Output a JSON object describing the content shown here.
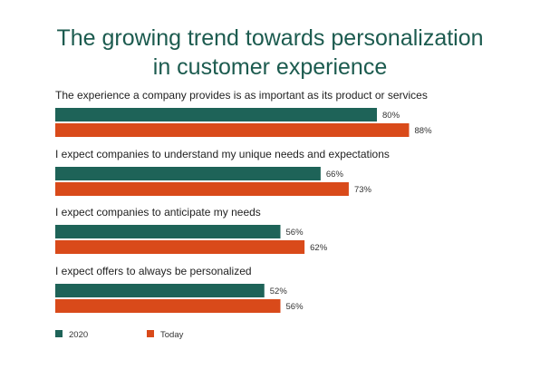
{
  "chart_data": {
    "type": "bar",
    "orientation": "horizontal",
    "title_lines": [
      "The growing trend towards personalization",
      "in customer experience"
    ],
    "categories": [
      "The experience a company provides is as important as its product or services",
      "I expect companies to understand my unique needs and expectations",
      "I expect companies to anticipate my needs",
      "I expect offers to always be personalized"
    ],
    "series": [
      {
        "name": "2020",
        "color": "#1e6358",
        "values": [
          80,
          66,
          56,
          52
        ],
        "labels": [
          "80%",
          "66%",
          "56%",
          "52%"
        ]
      },
      {
        "name": "Today",
        "color": "#d94a1a",
        "values": [
          88,
          73,
          62,
          56
        ],
        "labels": [
          "88%",
          "73%",
          "62%",
          "56%"
        ]
      }
    ],
    "value_unit": "%",
    "xlim": [
      0,
      100
    ],
    "grid": false,
    "legend_position": "bottom-left"
  }
}
